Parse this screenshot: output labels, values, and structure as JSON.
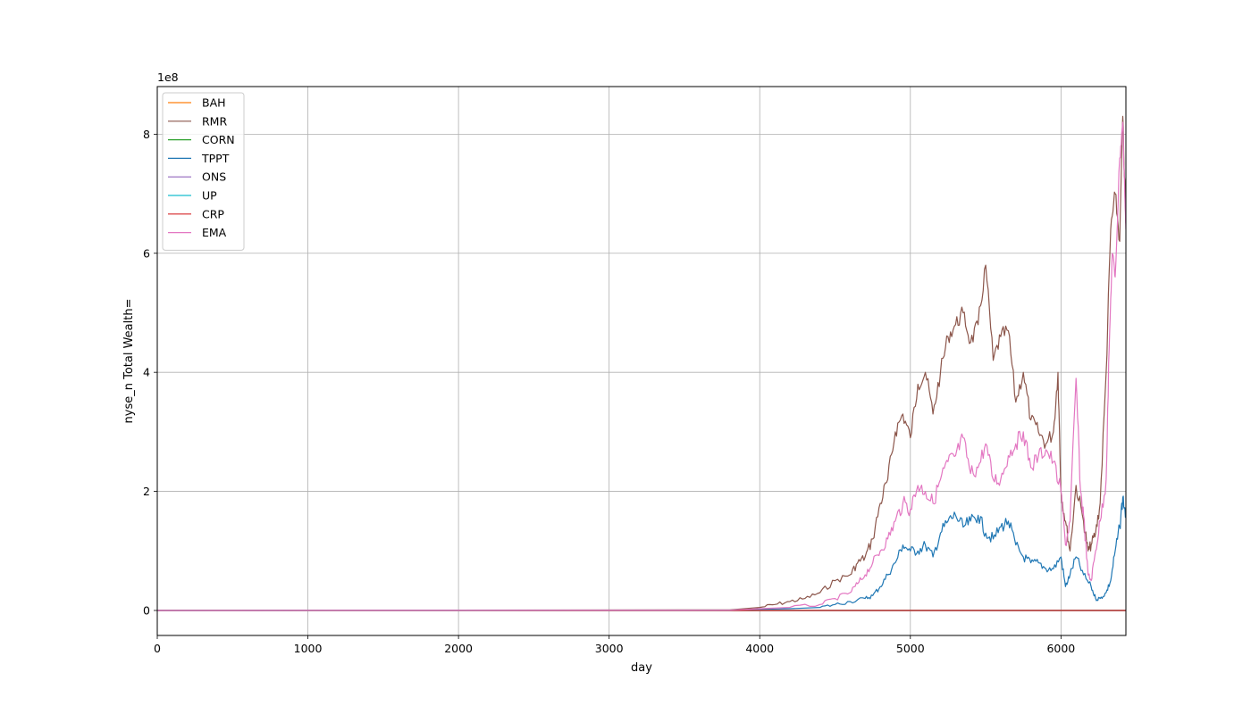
{
  "chart_data": {
    "type": "line",
    "title": "",
    "xlabel": "day",
    "ylabel": "nyse_n Total Wealth=",
    "y_offset_text": "1e8",
    "xlim": [
      0,
      6431
    ],
    "ylim": [
      -42000000,
      880000000
    ],
    "y_scale_divisor": 100000000,
    "x_ticks": [
      0,
      1000,
      2000,
      3000,
      4000,
      5000,
      6000
    ],
    "y_ticks": [
      0,
      200000000,
      400000000,
      600000000,
      800000000
    ],
    "grid": true,
    "legend_position": "top-left",
    "series": [
      {
        "name": "BAH",
        "color": "#ff7f0e",
        "x": [
          0,
          6431
        ],
        "y": [
          0,
          0
        ]
      },
      {
        "name": "RMR",
        "color": "#8c564b",
        "x": [
          0,
          3800,
          4000,
          4100,
          4200,
          4300,
          4400,
          4500,
          4600,
          4650,
          4700,
          4750,
          4800,
          4850,
          4900,
          4950,
          5000,
          5050,
          5100,
          5150,
          5200,
          5250,
          5300,
          5350,
          5400,
          5450,
          5500,
          5550,
          5600,
          5650,
          5700,
          5750,
          5800,
          5850,
          5900,
          5950,
          5980,
          6000,
          6030,
          6060,
          6100,
          6150,
          6180,
          6200,
          6230,
          6260,
          6300,
          6330,
          6360,
          6390,
          6410,
          6431
        ],
        "y": [
          0,
          1000000,
          5000000,
          10000000,
          15000000,
          20000000,
          30000000,
          50000000,
          60000000,
          80000000,
          90000000,
          120000000,
          180000000,
          220000000,
          300000000,
          330000000,
          290000000,
          380000000,
          400000000,
          330000000,
          400000000,
          460000000,
          480000000,
          500000000,
          450000000,
          480000000,
          580000000,
          420000000,
          460000000,
          470000000,
          350000000,
          400000000,
          320000000,
          300000000,
          280000000,
          300000000,
          400000000,
          200000000,
          150000000,
          100000000,
          210000000,
          150000000,
          100000000,
          110000000,
          130000000,
          180000000,
          400000000,
          640000000,
          700000000,
          620000000,
          830000000,
          650000000
        ]
      },
      {
        "name": "CORN",
        "color": "#2ca02c",
        "x": [
          0,
          6431
        ],
        "y": [
          0,
          0
        ]
      },
      {
        "name": "TPPT",
        "color": "#1f77b4",
        "x": [
          0,
          3800,
          4000,
          4200,
          4400,
          4500,
          4600,
          4700,
          4750,
          4800,
          4850,
          4900,
          4950,
          5000,
          5050,
          5100,
          5150,
          5200,
          5250,
          5300,
          5350,
          5400,
          5450,
          5500,
          5550,
          5600,
          5650,
          5700,
          5750,
          5800,
          5850,
          5900,
          5950,
          6000,
          6030,
          6060,
          6100,
          6150,
          6200,
          6230,
          6260,
          6300,
          6330,
          6360,
          6390,
          6410,
          6431
        ],
        "y": [
          0,
          500000,
          2000000,
          3000000,
          5000000,
          10000000,
          15000000,
          20000000,
          25000000,
          40000000,
          60000000,
          80000000,
          110000000,
          100000000,
          100000000,
          110000000,
          90000000,
          130000000,
          150000000,
          160000000,
          140000000,
          150000000,
          160000000,
          130000000,
          120000000,
          140000000,
          150000000,
          110000000,
          90000000,
          80000000,
          80000000,
          70000000,
          70000000,
          90000000,
          40000000,
          60000000,
          90000000,
          60000000,
          40000000,
          20000000,
          20000000,
          30000000,
          50000000,
          100000000,
          140000000,
          190000000,
          160000000
        ]
      },
      {
        "name": "ONS",
        "color": "#9467bd",
        "x": [
          0,
          6431
        ],
        "y": [
          0,
          0
        ]
      },
      {
        "name": "UP",
        "color": "#17becf",
        "x": [
          0,
          6431
        ],
        "y": [
          0,
          0
        ]
      },
      {
        "name": "CRP",
        "color": "#d62728",
        "x": [
          0,
          6431
        ],
        "y": [
          0,
          0
        ]
      },
      {
        "name": "EMA",
        "color": "#e377c2",
        "x": [
          0,
          3800,
          4000,
          4200,
          4400,
          4500,
          4600,
          4650,
          4700,
          4750,
          4800,
          4850,
          4900,
          4950,
          5000,
          5050,
          5100,
          5150,
          5200,
          5250,
          5300,
          5350,
          5400,
          5450,
          5500,
          5550,
          5600,
          5650,
          5700,
          5750,
          5800,
          5850,
          5900,
          5950,
          6000,
          6030,
          6060,
          6100,
          6130,
          6150,
          6180,
          6200,
          6230,
          6260,
          6300,
          6320,
          6340,
          6360,
          6390,
          6410,
          6431
        ],
        "y": [
          0,
          500000,
          3000000,
          5000000,
          10000000,
          20000000,
          30000000,
          45000000,
          60000000,
          80000000,
          100000000,
          120000000,
          150000000,
          180000000,
          170000000,
          210000000,
          200000000,
          180000000,
          220000000,
          250000000,
          260000000,
          290000000,
          230000000,
          240000000,
          280000000,
          220000000,
          220000000,
          260000000,
          280000000,
          300000000,
          240000000,
          260000000,
          270000000,
          250000000,
          200000000,
          110000000,
          150000000,
          390000000,
          200000000,
          160000000,
          60000000,
          50000000,
          100000000,
          150000000,
          220000000,
          440000000,
          600000000,
          560000000,
          760000000,
          820000000,
          640000000
        ]
      }
    ]
  }
}
